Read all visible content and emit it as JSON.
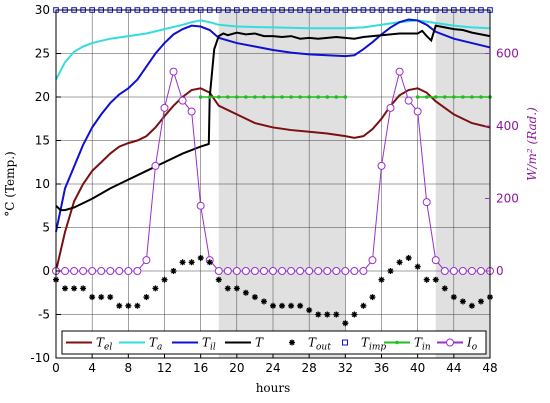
{
  "chart_data": {
    "type": "line",
    "title": "",
    "xlabel": "hours",
    "ylabel_left": "°C (Temp.)",
    "ylabel_right": "W/m² (Rad.)",
    "xlim": [
      0,
      48
    ],
    "ylim_left": [
      -10,
      30
    ],
    "ylim_right_ticks": [
      0,
      200,
      400,
      600
    ],
    "x_ticks": [
      "0",
      "4",
      "8",
      "12",
      "16",
      "20",
      "24",
      "28",
      "32",
      "36",
      "40",
      "44",
      "48"
    ],
    "y_ticks_left": [
      "-10",
      "-5",
      "0",
      "5",
      "10",
      "15",
      "20",
      "25",
      "30"
    ],
    "y_ticks_right": [
      "0",
      "200",
      "400",
      "600"
    ],
    "grid": true,
    "night_bands": [
      [
        18,
        32
      ],
      [
        42,
        48
      ]
    ],
    "legend_position": "bottom",
    "colors": {
      "T_el": "#7a1010",
      "T_a": "#33dddd",
      "T_il": "#1010d0",
      "T": "#000000",
      "T_out": "#000000",
      "T_imp": "#1010d0",
      "T_in": "#22bb22",
      "I_o": "#9b30c8",
      "night": "#e0e0e0"
    },
    "series": [
      {
        "key": "T_el",
        "name": "T_el",
        "legend_main": "T",
        "legend_sub": "el",
        "style": "line",
        "axis": "left",
        "x": [
          0,
          1,
          2,
          3,
          4,
          5,
          6,
          7,
          8,
          9,
          10,
          11,
          12,
          13,
          14,
          15,
          16,
          17,
          18,
          20,
          22,
          24,
          26,
          28,
          30,
          32,
          33,
          34,
          35,
          36,
          37,
          38,
          39,
          40,
          41,
          42,
          44,
          46,
          48
        ],
        "y": [
          0,
          4.5,
          8,
          10,
          11.5,
          12.5,
          13.5,
          14.3,
          14.7,
          15,
          15.5,
          16.5,
          17.8,
          19,
          20,
          20.8,
          21,
          20.5,
          19,
          18,
          17,
          16.5,
          16.2,
          16,
          15.8,
          15.5,
          15.3,
          15.5,
          16.3,
          17.5,
          19,
          20.2,
          20.8,
          21,
          20.5,
          19.5,
          18,
          17,
          16.5
        ]
      },
      {
        "key": "T_a",
        "name": "T_a",
        "legend_main": "T",
        "legend_sub": "a",
        "style": "line",
        "axis": "left",
        "x": [
          0,
          1,
          2,
          3,
          4,
          6,
          8,
          10,
          12,
          14,
          15,
          16,
          17,
          18,
          20,
          24,
          28,
          32,
          34,
          36,
          38,
          40,
          42,
          44,
          46,
          48
        ],
        "y": [
          22,
          24,
          25.2,
          25.8,
          26.2,
          26.7,
          27,
          27.3,
          27.8,
          28.3,
          28.6,
          28.8,
          28.6,
          28.3,
          28.1,
          28,
          27.9,
          27.9,
          28,
          28.3,
          28.6,
          28.8,
          28.5,
          28.2,
          28,
          27.9
        ]
      },
      {
        "key": "T_il",
        "name": "T_il",
        "legend_main": "T",
        "legend_sub": "il",
        "style": "line",
        "axis": "left",
        "x": [
          0,
          1,
          2,
          3,
          4,
          5,
          6,
          7,
          8,
          9,
          10,
          11,
          12,
          13,
          14,
          15,
          16,
          17,
          18,
          20,
          22,
          24,
          26,
          28,
          30,
          32,
          33,
          34,
          35,
          36,
          37,
          38,
          39,
          40,
          41,
          42,
          44,
          46,
          48
        ],
        "y": [
          4.5,
          9.5,
          12,
          14.5,
          16.5,
          18,
          19.3,
          20.3,
          21,
          22,
          23.5,
          25,
          26.2,
          27.2,
          27.8,
          28.2,
          28.1,
          27.7,
          26.8,
          26.2,
          25.8,
          25.4,
          25.1,
          24.9,
          24.8,
          24.7,
          24.8,
          25.5,
          26.3,
          27.2,
          28,
          28.6,
          28.9,
          28.8,
          28.3,
          27.5,
          26.7,
          26.2,
          25.7
        ]
      },
      {
        "key": "T",
        "name": "T",
        "legend_main": "T",
        "legend_sub": "",
        "style": "line",
        "axis": "left",
        "x": [
          0,
          0.5,
          1,
          2,
          4,
          6,
          8,
          10,
          12,
          14,
          16,
          16.9,
          17,
          17.5,
          18,
          18.5,
          19,
          20,
          21,
          22,
          23,
          24,
          25,
          26,
          27,
          28,
          29,
          30,
          31,
          32,
          33,
          34,
          35,
          36,
          37,
          38,
          39,
          40,
          40.5,
          41,
          41.5,
          42,
          43,
          44,
          45,
          46,
          47,
          48
        ],
        "y": [
          7.5,
          7,
          7,
          7.3,
          8.3,
          9.5,
          10.5,
          11.5,
          12.5,
          13.5,
          14.3,
          14.6,
          20,
          25.5,
          27,
          27.3,
          27.1,
          27.4,
          27.2,
          27.3,
          27.0,
          27.0,
          26.9,
          27.0,
          26.7,
          26.8,
          26.7,
          26.8,
          26.9,
          26.8,
          26.7,
          26.9,
          27.0,
          27.1,
          27.2,
          27.3,
          27.3,
          27.3,
          27.6,
          27.0,
          26.5,
          28.2,
          28,
          27.8,
          27.7,
          27.4,
          27.2,
          27.0
        ]
      },
      {
        "key": "T_out",
        "name": "T_out",
        "legend_main": "T",
        "legend_sub": "out",
        "style": "markers-star",
        "axis": "left",
        "x": [
          0,
          1,
          2,
          3,
          4,
          5,
          6,
          7,
          8,
          9,
          10,
          11,
          12,
          13,
          14,
          15,
          16,
          17,
          18,
          19,
          20,
          21,
          22,
          23,
          24,
          25,
          26,
          27,
          28,
          29,
          30,
          31,
          32,
          33,
          34,
          35,
          36,
          37,
          38,
          39,
          40,
          41,
          42,
          43,
          44,
          45,
          46,
          47,
          48
        ],
        "y": [
          -1,
          -2,
          -2,
          -2,
          -3,
          -3,
          -3,
          -4,
          -4,
          -4,
          -3,
          -2,
          -1,
          0,
          1,
          1,
          1.5,
          1,
          -1,
          -2,
          -2,
          -2.5,
          -3,
          -3.5,
          -4,
          -4,
          -4,
          -4,
          -4.5,
          -5,
          -5,
          -5,
          -6,
          -5,
          -4,
          -3,
          -1,
          0,
          1,
          1.5,
          0.5,
          -1,
          -1,
          -2,
          -3,
          -3.5,
          -4,
          -3.5,
          -3
        ]
      },
      {
        "key": "T_imp",
        "name": "T_imp",
        "legend_main": "T",
        "legend_sub": "imp",
        "style": "markers-square",
        "axis": "left",
        "x": [
          0,
          1,
          2,
          3,
          4,
          5,
          6,
          7,
          8,
          9,
          10,
          11,
          12,
          13,
          14,
          15,
          16,
          17,
          18,
          19,
          20,
          21,
          22,
          23,
          24,
          25,
          26,
          27,
          28,
          29,
          30,
          31,
          32,
          33,
          34,
          35,
          36,
          37,
          38,
          39,
          40,
          41,
          42,
          43,
          44,
          45,
          46,
          47,
          48
        ],
        "y": [
          30,
          30,
          30,
          30,
          30,
          30,
          30,
          30,
          30,
          30,
          30,
          30,
          30,
          30,
          30,
          30,
          30,
          30,
          30,
          30,
          30,
          30,
          30,
          30,
          30,
          30,
          30,
          30,
          30,
          30,
          30,
          30,
          30,
          30,
          30,
          30,
          30,
          30,
          30,
          30,
          30,
          30,
          30,
          30,
          30,
          30,
          30,
          30,
          30
        ]
      },
      {
        "key": "T_in",
        "name": "T_in",
        "legend_main": "T",
        "legend_sub": "in",
        "style": "line-dots",
        "axis": "left",
        "x": [
          16,
          17,
          18,
          19,
          20,
          21,
          22,
          23,
          24,
          25,
          26,
          27,
          28,
          29,
          30,
          31,
          32,
          40,
          41,
          42,
          43,
          44,
          45,
          46,
          47,
          48
        ],
        "y": [
          20,
          20,
          20,
          20,
          20,
          20,
          20,
          20,
          20,
          20,
          20,
          20,
          20,
          20,
          20,
          20,
          20,
          20,
          20,
          20,
          20,
          20,
          20,
          20,
          20,
          20
        ]
      },
      {
        "key": "I_o",
        "name": "I_o",
        "legend_main": "I",
        "legend_sub": "o",
        "style": "line-circles",
        "axis": "right",
        "x": [
          0,
          1,
          2,
          3,
          4,
          5,
          6,
          7,
          8,
          9,
          10,
          11,
          12,
          13,
          14,
          15,
          16,
          17,
          18,
          19,
          20,
          21,
          22,
          23,
          24,
          25,
          26,
          27,
          28,
          29,
          30,
          31,
          32,
          33,
          34,
          35,
          36,
          37,
          38,
          39,
          40,
          41,
          42,
          43,
          44,
          45,
          46,
          47,
          48
        ],
        "y": [
          0,
          0,
          0,
          0,
          0,
          0,
          0,
          0,
          0,
          0,
          30,
          290,
          450,
          550,
          470,
          440,
          180,
          30,
          0,
          0,
          0,
          0,
          0,
          0,
          0,
          0,
          0,
          0,
          0,
          0,
          0,
          0,
          0,
          0,
          0,
          30,
          290,
          450,
          550,
          470,
          440,
          190,
          30,
          0,
          0,
          0,
          0,
          0,
          0
        ]
      }
    ]
  }
}
